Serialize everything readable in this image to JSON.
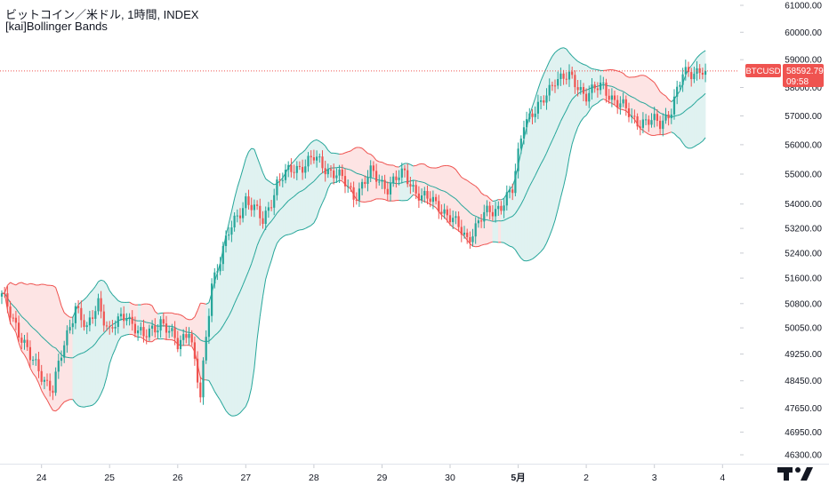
{
  "header": {
    "title": "ビットコイン／米ドル, 1時間, INDEX",
    "indicator": "[kai]Bollinger Bands"
  },
  "price_label": {
    "symbol": "BTCUSD",
    "price": "58592.79",
    "countdown": "09:58"
  },
  "colors": {
    "up": "#26a69a",
    "down": "#ef5350",
    "band_line": "#26a69a",
    "band_fill_bull": "#e0f2f1",
    "band_fill_bear": "#fde4e4",
    "price_line": "#ef5350",
    "axis_text": "#131722",
    "background": "#ffffff"
  },
  "chart_data": {
    "type": "candlestick",
    "title": "ビットコイン／米ドル, 1時間, INDEX",
    "indicator": "[kai]Bollinger Bands",
    "interval": "1時間",
    "x_ticks": [
      "24",
      "25",
      "26",
      "27",
      "28",
      "29",
      "30",
      "5月",
      "2",
      "3",
      "4"
    ],
    "y_ticks": [
      61000,
      60000,
      59000,
      58000,
      57000,
      56000,
      55000,
      54000,
      53200,
      52400,
      51600,
      50800,
      50050,
      49250,
      48450,
      47650,
      46950,
      46300
    ],
    "y_tick_labels": [
      "61000.00",
      "60000.00",
      "59000.00",
      "58000.00",
      "57000.00",
      "56000.00",
      "55000.00",
      "54000.00",
      "53200.00",
      "52400.00",
      "51600.00",
      "50800.00",
      "50050.00",
      "49250.00",
      "48450.00",
      "47650.00",
      "46950.00",
      "46300.00"
    ],
    "y_scale": "log",
    "last_price": 58592.79,
    "anchors": [
      [
        0,
        51000
      ],
      [
        5,
        50200
      ],
      [
        10,
        49100
      ],
      [
        18,
        48200
      ],
      [
        22,
        49500
      ],
      [
        26,
        50800
      ],
      [
        30,
        49900
      ],
      [
        34,
        50900
      ],
      [
        38,
        49900
      ],
      [
        44,
        50500
      ],
      [
        50,
        49700
      ],
      [
        56,
        50300
      ],
      [
        62,
        49500
      ],
      [
        66,
        50100
      ],
      [
        70,
        47900
      ],
      [
        74,
        51500
      ],
      [
        80,
        53000
      ],
      [
        86,
        54200
      ],
      [
        92,
        53400
      ],
      [
        97,
        54700
      ],
      [
        103,
        55200
      ],
      [
        110,
        55500
      ],
      [
        118,
        55000
      ],
      [
        124,
        54300
      ],
      [
        130,
        55000
      ],
      [
        136,
        54600
      ],
      [
        142,
        55000
      ],
      [
        148,
        54200
      ],
      [
        154,
        54000
      ],
      [
        160,
        53300
      ],
      [
        164,
        52900
      ],
      [
        170,
        53600
      ],
      [
        176,
        54000
      ],
      [
        180,
        54400
      ],
      [
        184,
        56900
      ],
      [
        190,
        57300
      ],
      [
        195,
        58400
      ],
      [
        200,
        58300
      ],
      [
        206,
        57800
      ],
      [
        212,
        58000
      ],
      [
        218,
        57400
      ],
      [
        222,
        56900
      ],
      [
        228,
        56800
      ],
      [
        232,
        56700
      ],
      [
        236,
        57300
      ],
      [
        240,
        58400
      ],
      [
        246,
        58700
      ],
      [
        248,
        58600
      ]
    ]
  }
}
